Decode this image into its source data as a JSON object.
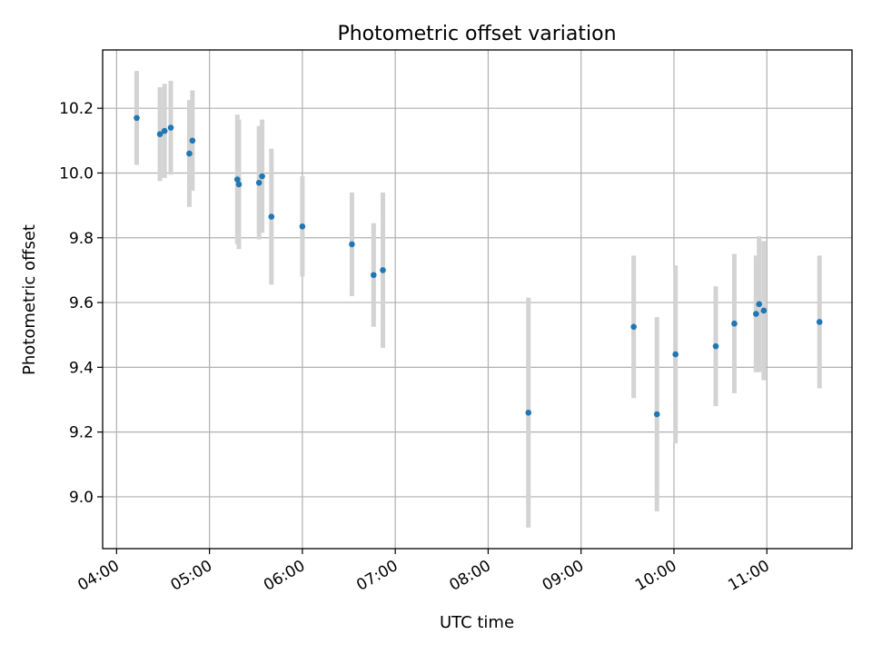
{
  "chart_data": {
    "type": "scatter",
    "title": "Photometric offset variation",
    "xlabel": "UTC time",
    "ylabel": "Photometric offset",
    "x_tick_labels": [
      "04:00",
      "05:00",
      "06:00",
      "07:00",
      "08:00",
      "09:00",
      "10:00",
      "11:00"
    ],
    "y_tick_labels": [
      "9.0",
      "9.2",
      "9.4",
      "9.6",
      "9.8",
      "10.0",
      "10.2"
    ],
    "y_ticks": [
      9.0,
      9.2,
      9.4,
      9.6,
      9.8,
      10.0,
      10.2
    ],
    "xlim": [
      "03:51",
      "11:55"
    ],
    "ylim": [
      8.84,
      10.38
    ],
    "grid": true,
    "colors": {
      "points": "#1f77b4",
      "errorbars": "#d3d3d3",
      "grid": "#b0b0b0"
    },
    "points": [
      {
        "time": "04:13",
        "y": 10.17,
        "err": 0.145
      },
      {
        "time": "04:28",
        "y": 10.12,
        "err": 0.145
      },
      {
        "time": "04:31",
        "y": 10.13,
        "err": 0.145
      },
      {
        "time": "04:35",
        "y": 10.14,
        "err": 0.145
      },
      {
        "time": "04:47",
        "y": 10.06,
        "err": 0.165
      },
      {
        "time": "04:49",
        "y": 10.1,
        "err": 0.155
      },
      {
        "time": "05:18",
        "y": 9.98,
        "err": 0.2
      },
      {
        "time": "05:19",
        "y": 9.965,
        "err": 0.2
      },
      {
        "time": "05:32",
        "y": 9.97,
        "err": 0.175
      },
      {
        "time": "05:34",
        "y": 9.99,
        "err": 0.175
      },
      {
        "time": "05:40",
        "y": 9.865,
        "err": 0.21
      },
      {
        "time": "06:00",
        "y": 9.835,
        "err": 0.155
      },
      {
        "time": "06:32",
        "y": 9.78,
        "err": 0.16
      },
      {
        "time": "06:46",
        "y": 9.685,
        "err": 0.16
      },
      {
        "time": "06:52",
        "y": 9.7,
        "err": 0.24
      },
      {
        "time": "08:26",
        "y": 9.26,
        "err": 0.355
      },
      {
        "time": "09:34",
        "y": 9.525,
        "err": 0.22
      },
      {
        "time": "09:49",
        "y": 9.255,
        "err": 0.3
      },
      {
        "time": "10:01",
        "y": 9.44,
        "err": 0.275
      },
      {
        "time": "10:27",
        "y": 9.465,
        "err": 0.185
      },
      {
        "time": "10:39",
        "y": 9.535,
        "err": 0.215
      },
      {
        "time": "10:53",
        "y": 9.565,
        "err": 0.18
      },
      {
        "time": "10:55",
        "y": 9.595,
        "err": 0.21
      },
      {
        "time": "10:58",
        "y": 9.575,
        "err": 0.215
      },
      {
        "time": "11:34",
        "y": 9.54,
        "err": 0.205
      }
    ]
  }
}
